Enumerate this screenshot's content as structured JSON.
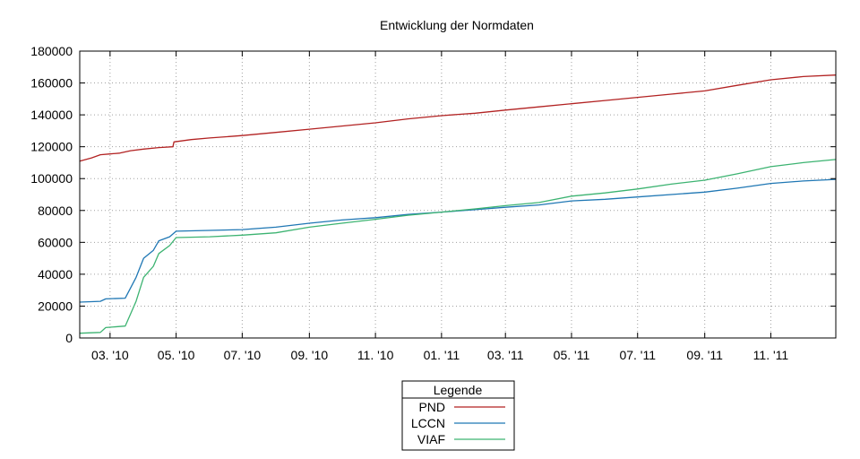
{
  "chart_data": {
    "type": "line",
    "title": "Entwicklung der Normdaten",
    "xlabel": "",
    "ylabel": "",
    "ylim": [
      0,
      180000
    ],
    "xlim": [
      "2010-02-01",
      "2011-12-31"
    ],
    "y_ticks": [
      0,
      20000,
      40000,
      60000,
      80000,
      100000,
      120000,
      140000,
      160000,
      180000
    ],
    "x_ticks": [
      {
        "date": "2010-03-01",
        "label": "03. '10"
      },
      {
        "date": "2010-05-01",
        "label": "05. '10"
      },
      {
        "date": "2010-07-01",
        "label": "07. '10"
      },
      {
        "date": "2010-09-01",
        "label": "09. '10"
      },
      {
        "date": "2010-11-01",
        "label": "11. '10"
      },
      {
        "date": "2011-01-01",
        "label": "01. '11"
      },
      {
        "date": "2011-03-01",
        "label": "03. '11"
      },
      {
        "date": "2011-05-01",
        "label": "05. '11"
      },
      {
        "date": "2011-07-01",
        "label": "07. '11"
      },
      {
        "date": "2011-09-01",
        "label": "09. '11"
      },
      {
        "date": "2011-11-01",
        "label": "11. '11"
      }
    ],
    "grid": true,
    "legend": {
      "title": "Legende",
      "placement": "bottom-center"
    },
    "series": [
      {
        "name": "PND",
        "color": "#b22222",
        "points": [
          [
            "2010-02-01",
            111000
          ],
          [
            "2010-02-12",
            113000
          ],
          [
            "2010-02-20",
            115000
          ],
          [
            "2010-03-01",
            115500
          ],
          [
            "2010-03-10",
            116000
          ],
          [
            "2010-03-20",
            117500
          ],
          [
            "2010-04-01",
            118500
          ],
          [
            "2010-04-15",
            119500
          ],
          [
            "2010-04-28",
            120000
          ],
          [
            "2010-04-29",
            123000
          ],
          [
            "2010-05-15",
            124500
          ],
          [
            "2010-06-01",
            125500
          ],
          [
            "2010-07-01",
            127000
          ],
          [
            "2010-08-01",
            129000
          ],
          [
            "2010-09-01",
            131000
          ],
          [
            "2010-10-01",
            133000
          ],
          [
            "2010-11-01",
            135000
          ],
          [
            "2010-12-01",
            137500
          ],
          [
            "2011-01-01",
            139500
          ],
          [
            "2011-02-01",
            141000
          ],
          [
            "2011-03-01",
            143000
          ],
          [
            "2011-04-01",
            145000
          ],
          [
            "2011-05-01",
            147000
          ],
          [
            "2011-06-01",
            149000
          ],
          [
            "2011-07-01",
            151000
          ],
          [
            "2011-08-01",
            153000
          ],
          [
            "2011-09-01",
            155000
          ],
          [
            "2011-10-01",
            158500
          ],
          [
            "2011-11-01",
            162000
          ],
          [
            "2011-12-01",
            164000
          ],
          [
            "2011-12-31",
            165000
          ]
        ]
      },
      {
        "name": "LCCN",
        "color": "#1f77b4",
        "points": [
          [
            "2010-02-01",
            22500
          ],
          [
            "2010-02-20",
            23000
          ],
          [
            "2010-02-25",
            24500
          ],
          [
            "2010-03-15",
            25000
          ],
          [
            "2010-03-25",
            38000
          ],
          [
            "2010-04-01",
            50000
          ],
          [
            "2010-04-10",
            55000
          ],
          [
            "2010-04-15",
            61000
          ],
          [
            "2010-04-25",
            63500
          ],
          [
            "2010-05-01",
            67000
          ],
          [
            "2010-06-01",
            67500
          ],
          [
            "2010-07-01",
            68000
          ],
          [
            "2010-08-01",
            69500
          ],
          [
            "2010-09-01",
            72000
          ],
          [
            "2010-10-01",
            74000
          ],
          [
            "2010-11-01",
            75500
          ],
          [
            "2010-12-01",
            77500
          ],
          [
            "2011-01-01",
            79000
          ],
          [
            "2011-02-01",
            80500
          ],
          [
            "2011-03-01",
            82000
          ],
          [
            "2011-04-01",
            83500
          ],
          [
            "2011-05-01",
            86000
          ],
          [
            "2011-06-01",
            87000
          ],
          [
            "2011-07-01",
            88500
          ],
          [
            "2011-08-01",
            90000
          ],
          [
            "2011-09-01",
            91500
          ],
          [
            "2011-10-01",
            94000
          ],
          [
            "2011-11-01",
            97000
          ],
          [
            "2011-12-01",
            98500
          ],
          [
            "2011-12-31",
            99500
          ]
        ]
      },
      {
        "name": "VIAF",
        "color": "#3cb371",
        "points": [
          [
            "2010-02-01",
            3000
          ],
          [
            "2010-02-20",
            3500
          ],
          [
            "2010-02-25",
            6500
          ],
          [
            "2010-03-15",
            7500
          ],
          [
            "2010-03-25",
            23000
          ],
          [
            "2010-04-01",
            38000
          ],
          [
            "2010-04-10",
            45000
          ],
          [
            "2010-04-15",
            53000
          ],
          [
            "2010-04-25",
            58000
          ],
          [
            "2010-05-01",
            63000
          ],
          [
            "2010-06-01",
            63500
          ],
          [
            "2010-07-01",
            64500
          ],
          [
            "2010-08-01",
            66000
          ],
          [
            "2010-09-01",
            69500
          ],
          [
            "2010-10-01",
            72000
          ],
          [
            "2010-11-01",
            74500
          ],
          [
            "2010-12-01",
            77000
          ],
          [
            "2011-01-01",
            79000
          ],
          [
            "2011-02-01",
            81000
          ],
          [
            "2011-03-01",
            83000
          ],
          [
            "2011-04-01",
            85000
          ],
          [
            "2011-05-01",
            89000
          ],
          [
            "2011-06-01",
            91000
          ],
          [
            "2011-07-01",
            93500
          ],
          [
            "2011-08-01",
            96500
          ],
          [
            "2011-09-01",
            99000
          ],
          [
            "2011-10-01",
            103000
          ],
          [
            "2011-11-01",
            107500
          ],
          [
            "2011-12-01",
            110000
          ],
          [
            "2011-12-31",
            112000
          ]
        ]
      }
    ]
  }
}
